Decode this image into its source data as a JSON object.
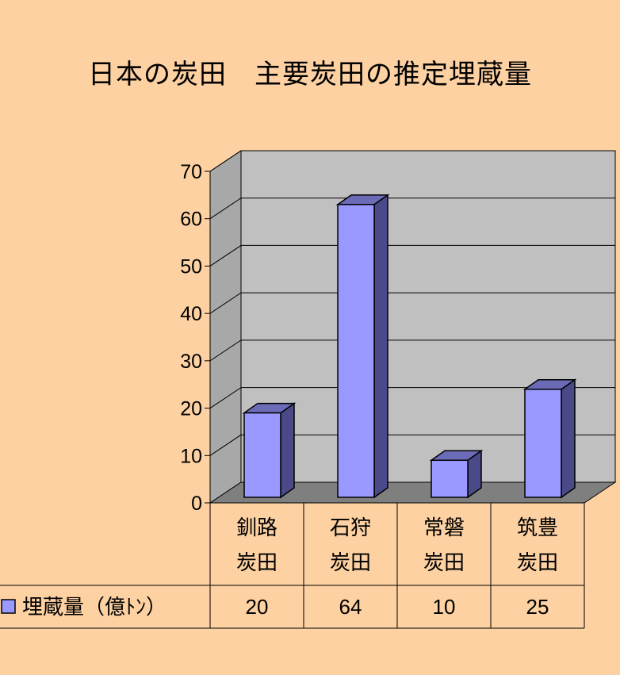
{
  "chart_data": {
    "type": "bar",
    "title": "日本の炭田　主要炭田の推定埋蔵量",
    "categories": [
      [
        "釧路",
        "炭田"
      ],
      [
        "石狩",
        "炭田"
      ],
      [
        "常磐",
        "炭田"
      ],
      [
        "筑豊",
        "炭田"
      ]
    ],
    "series": [
      {
        "name": "埋蔵量（億ﾄﾝ）",
        "values": [
          20,
          64,
          10,
          25
        ],
        "color": "#9999ff"
      }
    ],
    "ylim": [
      0,
      70
    ],
    "yticks": [
      0,
      10,
      20,
      30,
      40,
      50,
      60,
      70
    ],
    "grid": true,
    "style3d": true,
    "data_table": true,
    "colors": {
      "background": "#fdd1a2",
      "plot_wall": "#c0c0c0",
      "floor": "#7f7f7f",
      "bar_front": "#9999ff",
      "bar_side": "#4a4a88",
      "bar_top": "#6b6bb8"
    }
  }
}
